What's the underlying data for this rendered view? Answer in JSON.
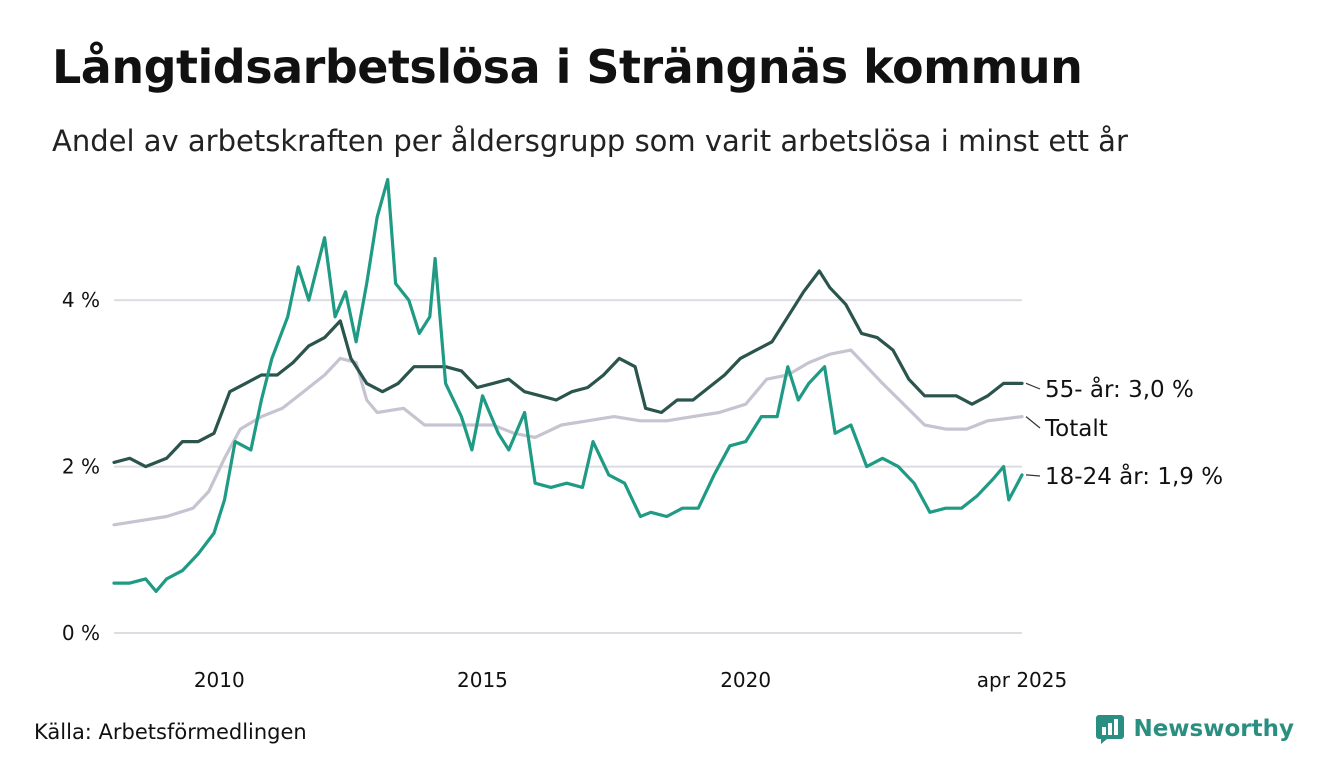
{
  "title": "Långtidsarbetslösa i Strängnäs kommun",
  "subtitle": "Andel av arbetskraften per åldersgrupp som varit arbetslösa i minst ett år",
  "source": "Källa: Arbetsförmedlingen",
  "brand": {
    "name": "Newsworthy",
    "icon": "newsworthy-logo-icon",
    "color": "#2a8f80"
  },
  "chart_data": {
    "type": "line",
    "x_range": [
      2008.0,
      2025.25
    ],
    "ylim": [
      0,
      5.6
    ],
    "y_ticks": [
      {
        "value": 0,
        "label": "0 %"
      },
      {
        "value": 2,
        "label": "2 %"
      },
      {
        "value": 4,
        "label": "4 %"
      }
    ],
    "x_ticks": [
      {
        "value": 2010,
        "label": "2010"
      },
      {
        "value": 2015,
        "label": "2015"
      },
      {
        "value": 2020,
        "label": "2020"
      },
      {
        "value": 2025.25,
        "label": "apr 2025"
      }
    ],
    "grid": "horizontal",
    "series": [
      {
        "name": "55- år",
        "end_label": "55- år: 3,0 %",
        "color": "#2a544c",
        "points": [
          [
            2008.0,
            2.05
          ],
          [
            2008.3,
            2.1
          ],
          [
            2008.6,
            2.0
          ],
          [
            2009.0,
            2.1
          ],
          [
            2009.3,
            2.3
          ],
          [
            2009.6,
            2.3
          ],
          [
            2009.9,
            2.4
          ],
          [
            2010.2,
            2.9
          ],
          [
            2010.5,
            3.0
          ],
          [
            2010.8,
            3.1
          ],
          [
            2011.1,
            3.1
          ],
          [
            2011.4,
            3.25
          ],
          [
            2011.7,
            3.45
          ],
          [
            2012.0,
            3.55
          ],
          [
            2012.3,
            3.75
          ],
          [
            2012.5,
            3.3
          ],
          [
            2012.8,
            3.0
          ],
          [
            2013.1,
            2.9
          ],
          [
            2013.4,
            3.0
          ],
          [
            2013.7,
            3.2
          ],
          [
            2014.0,
            3.2
          ],
          [
            2014.3,
            3.2
          ],
          [
            2014.6,
            3.15
          ],
          [
            2014.9,
            2.95
          ],
          [
            2015.2,
            3.0
          ],
          [
            2015.5,
            3.05
          ],
          [
            2015.8,
            2.9
          ],
          [
            2016.1,
            2.85
          ],
          [
            2016.4,
            2.8
          ],
          [
            2016.7,
            2.9
          ],
          [
            2017.0,
            2.95
          ],
          [
            2017.3,
            3.1
          ],
          [
            2017.6,
            3.3
          ],
          [
            2017.9,
            3.2
          ],
          [
            2018.1,
            2.7
          ],
          [
            2018.4,
            2.65
          ],
          [
            2018.7,
            2.8
          ],
          [
            2019.0,
            2.8
          ],
          [
            2019.3,
            2.95
          ],
          [
            2019.6,
            3.1
          ],
          [
            2019.9,
            3.3
          ],
          [
            2020.2,
            3.4
          ],
          [
            2020.5,
            3.5
          ],
          [
            2020.8,
            3.8
          ],
          [
            2021.1,
            4.1
          ],
          [
            2021.4,
            4.35
          ],
          [
            2021.6,
            4.15
          ],
          [
            2021.9,
            3.95
          ],
          [
            2022.2,
            3.6
          ],
          [
            2022.5,
            3.55
          ],
          [
            2022.8,
            3.4
          ],
          [
            2023.1,
            3.05
          ],
          [
            2023.4,
            2.85
          ],
          [
            2023.7,
            2.85
          ],
          [
            2024.0,
            2.85
          ],
          [
            2024.3,
            2.75
          ],
          [
            2024.6,
            2.85
          ],
          [
            2024.9,
            3.0
          ],
          [
            2025.25,
            3.0
          ]
        ]
      },
      {
        "name": "Totalt",
        "end_label": "Totalt",
        "color": "#c7c4d2",
        "points": [
          [
            2008.0,
            1.3
          ],
          [
            2008.5,
            1.35
          ],
          [
            2009.0,
            1.4
          ],
          [
            2009.5,
            1.5
          ],
          [
            2009.8,
            1.7
          ],
          [
            2010.1,
            2.1
          ],
          [
            2010.4,
            2.45
          ],
          [
            2010.8,
            2.6
          ],
          [
            2011.2,
            2.7
          ],
          [
            2011.6,
            2.9
          ],
          [
            2012.0,
            3.1
          ],
          [
            2012.3,
            3.3
          ],
          [
            2012.6,
            3.25
          ],
          [
            2012.8,
            2.8
          ],
          [
            2013.0,
            2.65
          ],
          [
            2013.5,
            2.7
          ],
          [
            2013.9,
            2.5
          ],
          [
            2014.3,
            2.5
          ],
          [
            2014.8,
            2.5
          ],
          [
            2015.2,
            2.5
          ],
          [
            2015.6,
            2.4
          ],
          [
            2016.0,
            2.35
          ],
          [
            2016.5,
            2.5
          ],
          [
            2017.0,
            2.55
          ],
          [
            2017.5,
            2.6
          ],
          [
            2018.0,
            2.55
          ],
          [
            2018.5,
            2.55
          ],
          [
            2019.0,
            2.6
          ],
          [
            2019.5,
            2.65
          ],
          [
            2020.0,
            2.75
          ],
          [
            2020.4,
            3.05
          ],
          [
            2020.8,
            3.1
          ],
          [
            2021.2,
            3.25
          ],
          [
            2021.6,
            3.35
          ],
          [
            2022.0,
            3.4
          ],
          [
            2022.3,
            3.2
          ],
          [
            2022.6,
            3.0
          ],
          [
            2023.0,
            2.75
          ],
          [
            2023.4,
            2.5
          ],
          [
            2023.8,
            2.45
          ],
          [
            2024.2,
            2.45
          ],
          [
            2024.6,
            2.55
          ],
          [
            2025.25,
            2.6
          ]
        ]
      },
      {
        "name": "18-24 år",
        "end_label": "18-24 år: 1,9 %",
        "color": "#1f9a85",
        "points": [
          [
            2008.0,
            0.6
          ],
          [
            2008.3,
            0.6
          ],
          [
            2008.6,
            0.65
          ],
          [
            2008.8,
            0.5
          ],
          [
            2009.0,
            0.65
          ],
          [
            2009.3,
            0.75
          ],
          [
            2009.6,
            0.95
          ],
          [
            2009.9,
            1.2
          ],
          [
            2010.1,
            1.6
          ],
          [
            2010.3,
            2.3
          ],
          [
            2010.6,
            2.2
          ],
          [
            2010.8,
            2.8
          ],
          [
            2011.0,
            3.3
          ],
          [
            2011.3,
            3.8
          ],
          [
            2011.5,
            4.4
          ],
          [
            2011.7,
            4.0
          ],
          [
            2011.9,
            4.5
          ],
          [
            2012.0,
            4.75
          ],
          [
            2012.2,
            3.8
          ],
          [
            2012.4,
            4.1
          ],
          [
            2012.6,
            3.5
          ],
          [
            2012.8,
            4.2
          ],
          [
            2013.0,
            5.0
          ],
          [
            2013.2,
            5.45
          ],
          [
            2013.35,
            4.2
          ],
          [
            2013.6,
            4.0
          ],
          [
            2013.8,
            3.6
          ],
          [
            2014.0,
            3.8
          ],
          [
            2014.1,
            4.5
          ],
          [
            2014.3,
            3.0
          ],
          [
            2014.6,
            2.6
          ],
          [
            2014.8,
            2.2
          ],
          [
            2015.0,
            2.85
          ],
          [
            2015.3,
            2.4
          ],
          [
            2015.5,
            2.2
          ],
          [
            2015.8,
            2.65
          ],
          [
            2016.0,
            1.8
          ],
          [
            2016.3,
            1.75
          ],
          [
            2016.6,
            1.8
          ],
          [
            2016.9,
            1.75
          ],
          [
            2017.1,
            2.3
          ],
          [
            2017.4,
            1.9
          ],
          [
            2017.7,
            1.8
          ],
          [
            2018.0,
            1.4
          ],
          [
            2018.2,
            1.45
          ],
          [
            2018.5,
            1.4
          ],
          [
            2018.8,
            1.5
          ],
          [
            2019.1,
            1.5
          ],
          [
            2019.4,
            1.9
          ],
          [
            2019.7,
            2.25
          ],
          [
            2020.0,
            2.3
          ],
          [
            2020.3,
            2.6
          ],
          [
            2020.6,
            2.6
          ],
          [
            2020.8,
            3.2
          ],
          [
            2021.0,
            2.8
          ],
          [
            2021.2,
            3.0
          ],
          [
            2021.5,
            3.2
          ],
          [
            2021.7,
            2.4
          ],
          [
            2022.0,
            2.5
          ],
          [
            2022.3,
            2.0
          ],
          [
            2022.6,
            2.1
          ],
          [
            2022.9,
            2.0
          ],
          [
            2023.2,
            1.8
          ],
          [
            2023.5,
            1.45
          ],
          [
            2023.8,
            1.5
          ],
          [
            2024.1,
            1.5
          ],
          [
            2024.4,
            1.65
          ],
          [
            2024.7,
            1.85
          ],
          [
            2024.9,
            2.0
          ],
          [
            2025.0,
            1.6
          ],
          [
            2025.25,
            1.9
          ]
        ]
      }
    ]
  }
}
